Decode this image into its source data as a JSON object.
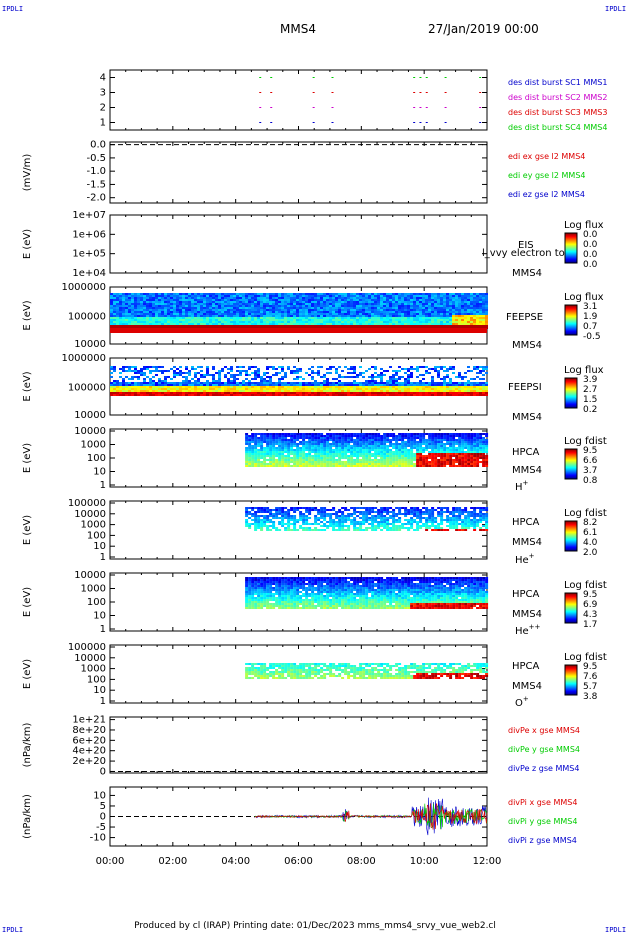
{
  "corner_label": "IPDLI",
  "header": {
    "title": "MMS4",
    "date": "27/Jan/2019 00:00"
  },
  "footer": "Produced by cl (IRAP)   Printing date: 01/Dec/2023   mms_mms4_srvy_vue_web2.cl",
  "colors": {
    "red": "#dd0000",
    "green": "#00cc00",
    "blue": "#0000cc",
    "magenta": "#cc00cc"
  },
  "chart_data": {
    "type": "multi-panel time series",
    "x_ticks": [
      "00:00",
      "02:00",
      "04:00",
      "06:00",
      "08:00",
      "10:00",
      "12:00"
    ],
    "x_range_hours": [
      0,
      12
    ],
    "panels": [
      {
        "id": "burst",
        "type": "scatter",
        "y_ticks": [
          "4",
          "3",
          "2",
          "1"
        ],
        "ylim": [
          0.5,
          4.5
        ],
        "right_labels": [
          {
            "text": "des dist burst SC1 MMS1",
            "color": "#0000cc"
          },
          {
            "text": "des dist burst SC2 MMS2",
            "color": "#cc00cc"
          },
          {
            "text": "des dist burst SC3 MMS3",
            "color": "#dd0000"
          },
          {
            "text": "des dist burst SC4 MMS4",
            "color": "#00cc00"
          }
        ],
        "burst_times_h": [
          4.75,
          5.1,
          6.45,
          7.05,
          9.65,
          9.85,
          10.05,
          10.65,
          11.75
        ]
      },
      {
        "id": "edi",
        "type": "line",
        "ylabel": "(mV/m)",
        "y_ticks": [
          "0.0",
          "-0.5",
          "-1.0",
          "-1.5",
          "-2.0"
        ],
        "ylim": [
          -2.2,
          0.1
        ],
        "right_labels": [
          {
            "text": "edi ex gse l2 MMS4",
            "color": "#dd0000"
          },
          {
            "text": "edi ey gse l2 MMS4",
            "color": "#00cc00"
          },
          {
            "text": "edi ez gse l2 MMS4",
            "color": "#0000cc"
          }
        ]
      },
      {
        "id": "eis",
        "type": "heatmap",
        "ylabel": "E (eV)",
        "y_ticks": [
          "1e+07",
          "1e+06",
          "1e+05",
          "1e+04"
        ],
        "right_labels": [
          "EIS",
          "MMS4"
        ],
        "overlay_text": "l_vvy electron to",
        "colorbar_title": "Log flux",
        "colorbar_ticks": [
          "0.0",
          "0.0",
          "0.0",
          "0.0"
        ]
      },
      {
        "id": "feepse",
        "type": "heatmap",
        "ylabel": "E (eV)",
        "y_ticks": [
          "1000000",
          "100000",
          "10000"
        ],
        "right_labels": [
          "FEEPSE",
          "MMS4"
        ],
        "colorbar_title": "Log flux",
        "colorbar_ticks": [
          "3.1",
          "1.9",
          "0.7",
          "-0.5"
        ]
      },
      {
        "id": "feepsi",
        "type": "heatmap",
        "ylabel": "E (eV)",
        "y_ticks": [
          "1000000",
          "100000",
          "10000"
        ],
        "right_labels": [
          "FEEPSI",
          "MMS4"
        ],
        "colorbar_title": "Log flux",
        "colorbar_ticks": [
          "3.9",
          "2.7",
          "1.5",
          "0.2"
        ]
      },
      {
        "id": "hpca_h",
        "type": "heatmap",
        "ylabel": "E (eV)",
        "y_ticks": [
          "10000",
          "1000",
          "100",
          "10",
          "1"
        ],
        "right_labels": [
          "HPCA",
          "MMS4"
        ],
        "species": "H",
        "species_charge": "+",
        "colorbar_title": "Log fdist",
        "colorbar_ticks": [
          "9.5",
          "6.6",
          "3.7",
          "0.8"
        ]
      },
      {
        "id": "hpca_he1",
        "type": "heatmap",
        "ylabel": "E (eV)",
        "y_ticks": [
          "100000",
          "10000",
          "1000",
          "100",
          "10",
          "1"
        ],
        "right_labels": [
          "HPCA",
          "MMS4"
        ],
        "species": "He",
        "species_charge": "+",
        "colorbar_title": "Log fdist",
        "colorbar_ticks": [
          "8.2",
          "6.1",
          "4.0",
          "2.0"
        ]
      },
      {
        "id": "hpca_he2",
        "type": "heatmap",
        "ylabel": "E (eV)",
        "y_ticks": [
          "10000",
          "1000",
          "100",
          "10",
          "1"
        ],
        "right_labels": [
          "HPCA",
          "MMS4"
        ],
        "species": "He",
        "species_charge": "++",
        "colorbar_title": "Log fdist",
        "colorbar_ticks": [
          "9.5",
          "6.9",
          "4.3",
          "1.7"
        ]
      },
      {
        "id": "hpca_o",
        "type": "heatmap",
        "ylabel": "E (eV)",
        "y_ticks": [
          "100000",
          "10000",
          "1000",
          "100",
          "10",
          "1"
        ],
        "right_labels": [
          "HPCA",
          "MMS4"
        ],
        "species": "O",
        "species_charge": "+",
        "colorbar_title": "Log fdist",
        "colorbar_ticks": [
          "9.5",
          "7.6",
          "5.7",
          "3.8"
        ]
      },
      {
        "id": "divpe",
        "type": "line",
        "ylabel": "(nPa/km)",
        "y_ticks": [
          "1e+21",
          "8e+20",
          "6e+20",
          "4e+20",
          "2e+20",
          "0"
        ],
        "ylim": [
          -3e+19,
          1.05e+21
        ],
        "right_labels": [
          {
            "text": "divPe x gse MMS4",
            "color": "#dd0000"
          },
          {
            "text": "divPe y gse MMS4",
            "color": "#00cc00"
          },
          {
            "text": "divPe z gse MMS4",
            "color": "#0000cc"
          }
        ]
      },
      {
        "id": "divpi",
        "type": "line",
        "ylabel": "(nPa/km)",
        "y_ticks": [
          "10",
          "5",
          "0",
          "-5",
          "-10"
        ],
        "ylim": [
          -14,
          14
        ],
        "right_labels": [
          {
            "text": "divPi x gse MMS4",
            "color": "#dd0000"
          },
          {
            "text": "divPi y gse MMS4",
            "color": "#00cc00"
          },
          {
            "text": "divPi z gse MMS4",
            "color": "#0000cc"
          }
        ]
      }
    ]
  }
}
